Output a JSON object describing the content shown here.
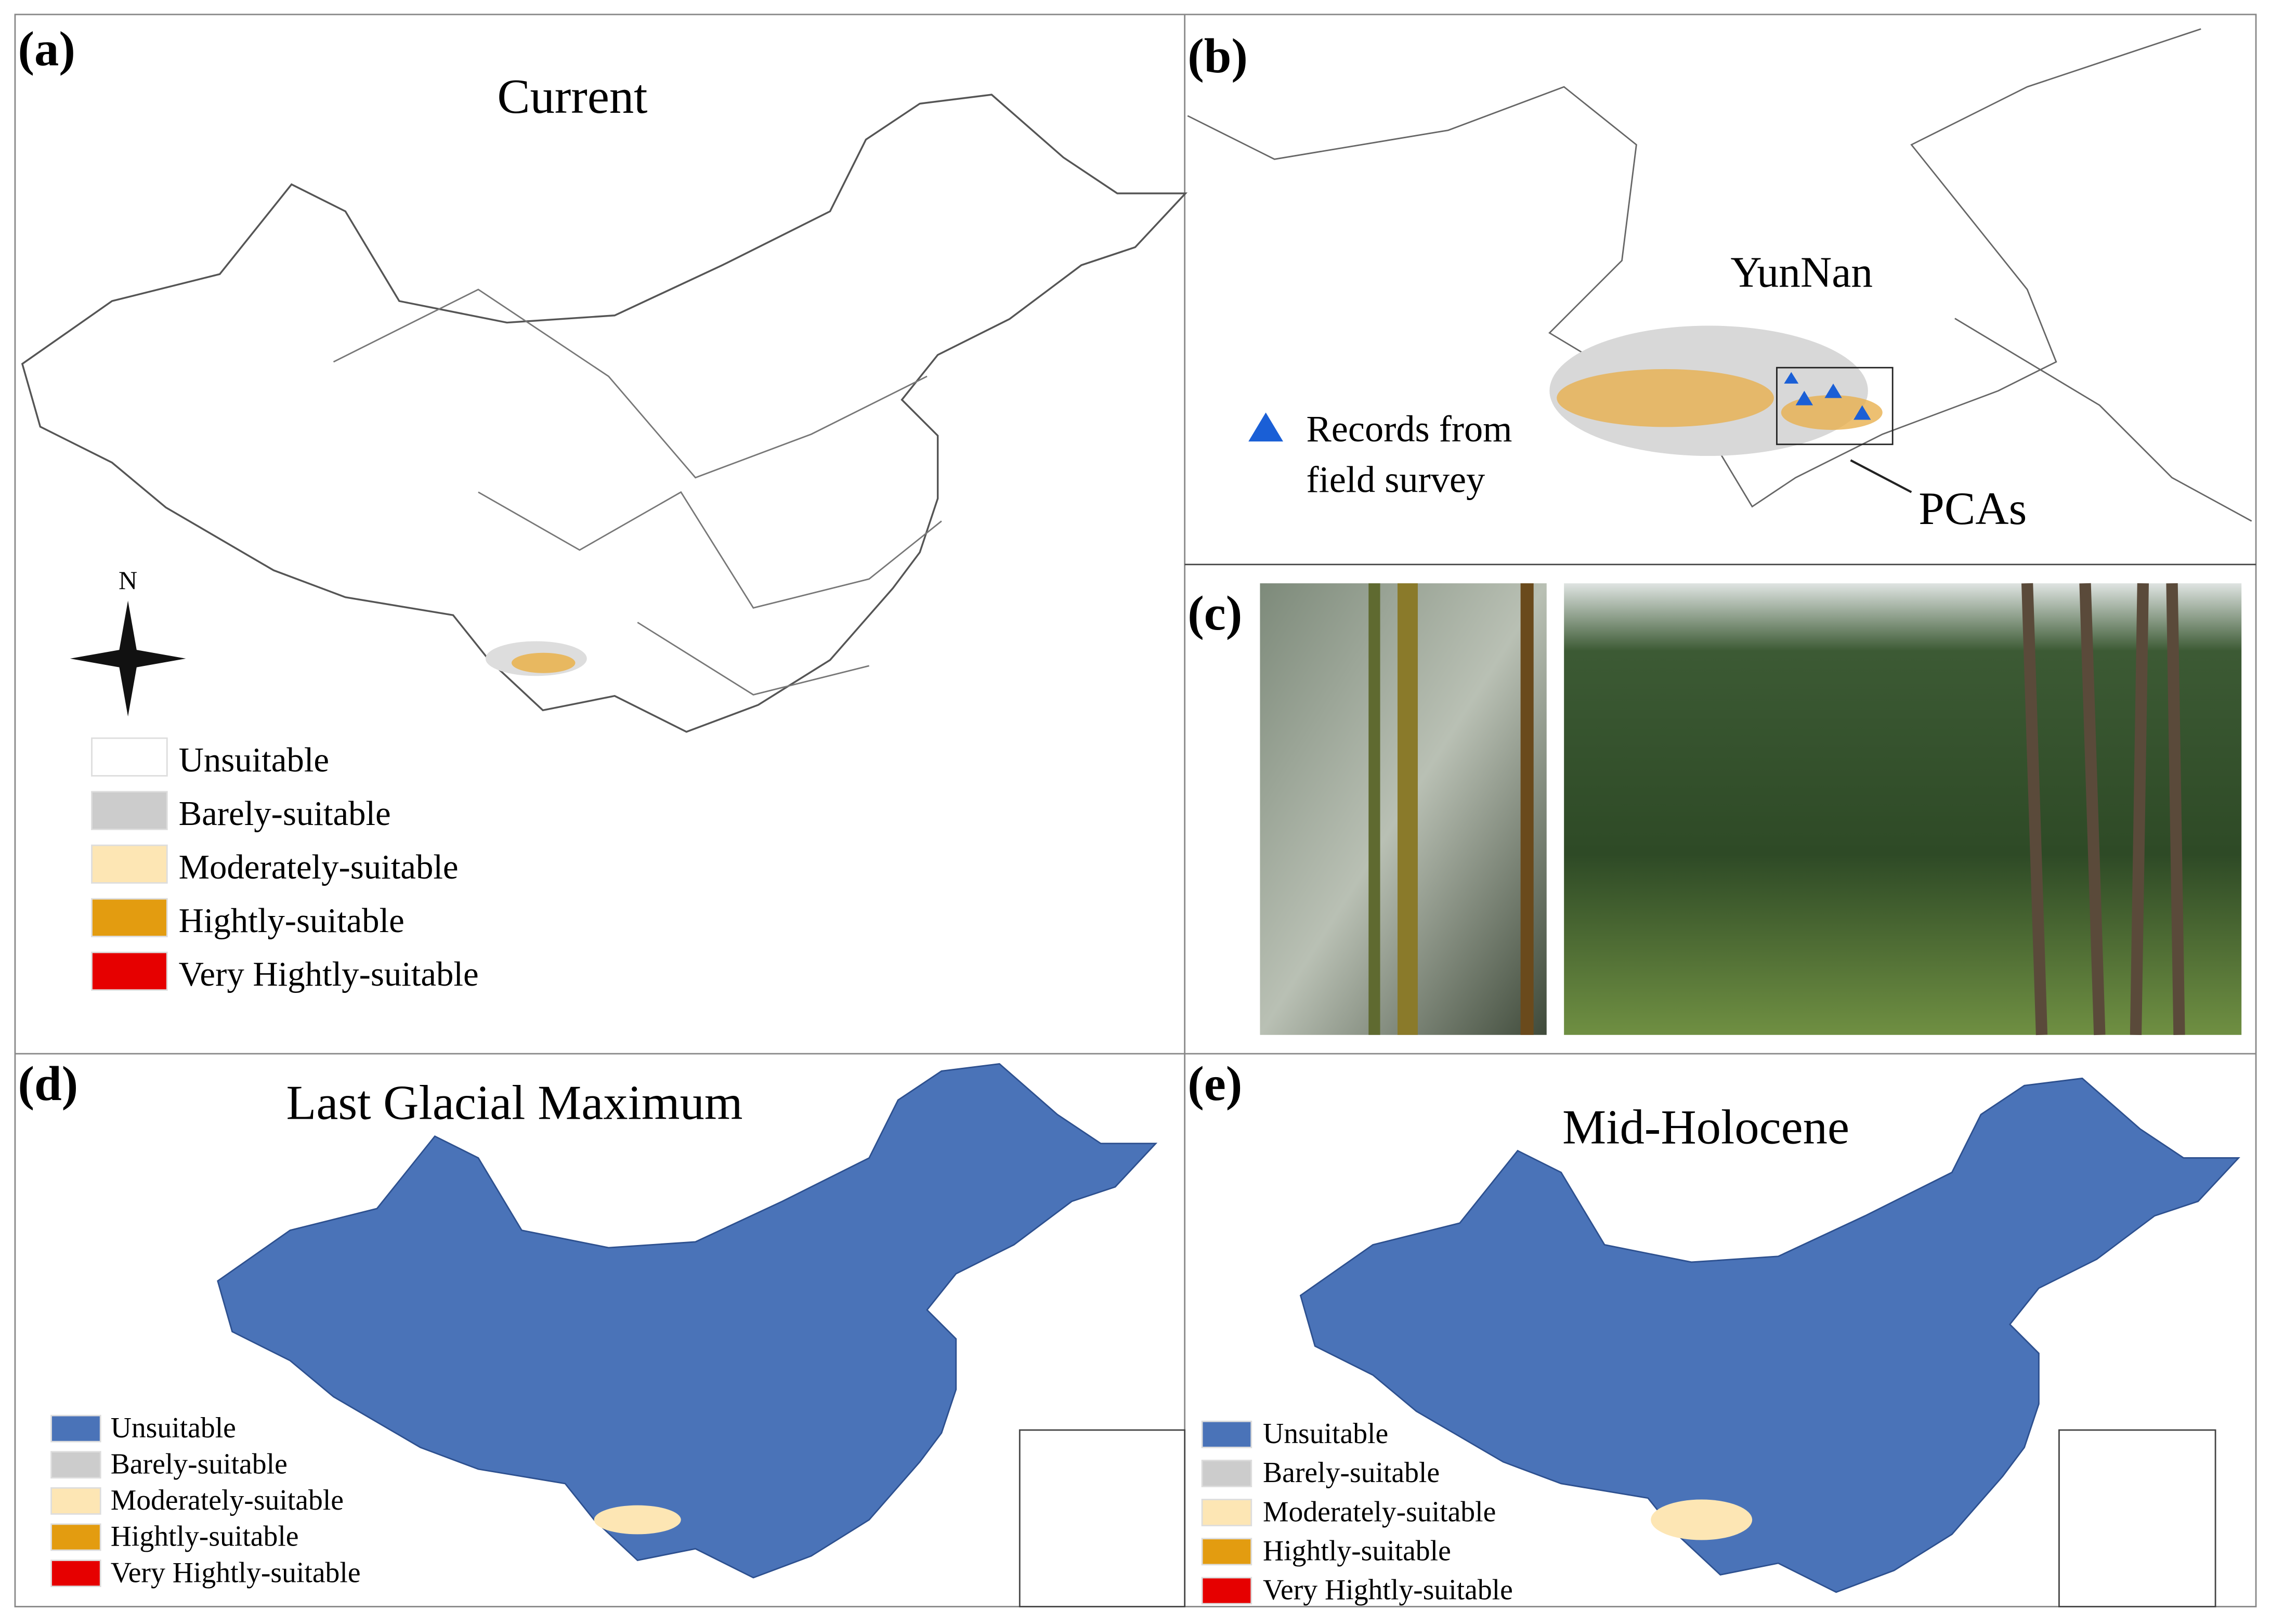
{
  "panels": [
    {
      "label": "(a)",
      "title": "Current",
      "compass": "N",
      "legend": [
        {
          "label": "Unsuitable",
          "color": "#ffffff"
        },
        {
          "label": "Barely-suitable",
          "color": "#cccccc"
        },
        {
          "label": "Moderately-suitable",
          "color": "#fde6b4"
        },
        {
          "label": "Hightly-suitable",
          "color": "#e39c10"
        },
        {
          "label": "Very Hightly-suitable",
          "color": "#e60000"
        }
      ]
    },
    {
      "label": "(b)",
      "region": "YunNan",
      "legend": [
        "Records from",
        "field survey"
      ],
      "box_label": "PCAs"
    },
    {
      "label": "(c)"
    },
    {
      "label": "(d)",
      "title": "Last Glacial Maximum",
      "legend": [
        {
          "label": "Unsuitable",
          "color": "#4a73b8"
        },
        {
          "label": "Barely-suitable",
          "color": "#cccccc"
        },
        {
          "label": "Moderately-suitable",
          "color": "#fde6b4"
        },
        {
          "label": "Hightly-suitable",
          "color": "#e39c10"
        },
        {
          "label": "Very Hightly-suitable",
          "color": "#e60000"
        }
      ]
    },
    {
      "label": "(e)",
      "title": "Mid-Holocene",
      "legend": [
        {
          "label": "Unsuitable",
          "color": "#4a73b8"
        },
        {
          "label": "Barely-suitable",
          "color": "#cccccc"
        },
        {
          "label": "Moderately-suitable",
          "color": "#fde6b4"
        },
        {
          "label": "Hightly-suitable",
          "color": "#e39c10"
        },
        {
          "label": "Very Hightly-suitable",
          "color": "#e60000"
        }
      ]
    }
  ]
}
